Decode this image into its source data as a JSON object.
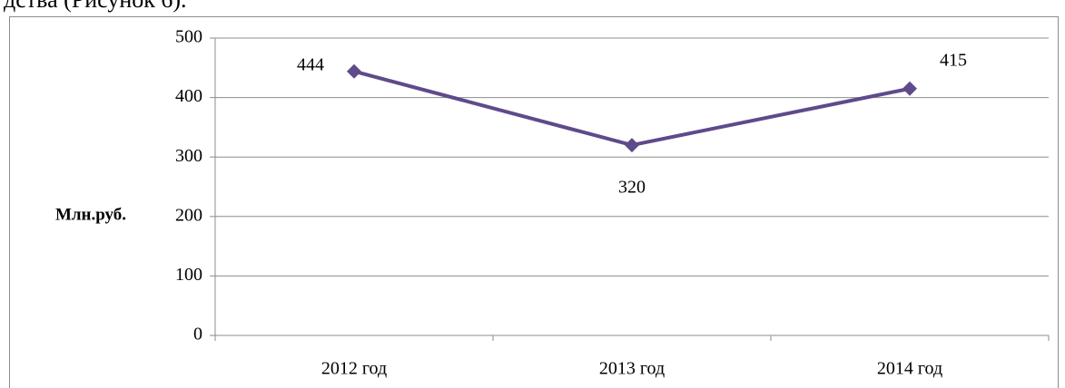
{
  "caption_fragment": "дства (Рисунок 6).",
  "chart_data": {
    "type": "line",
    "y_label": "Млн.руб.",
    "categories": [
      "2012 год",
      "2013 год",
      "2014 год"
    ],
    "series": [
      {
        "name": "Млн.руб.",
        "color": "#5f4a8b",
        "values": [
          444,
          320,
          415
        ]
      }
    ],
    "ylim": [
      0,
      500
    ],
    "yticks": [
      0,
      100,
      200,
      300,
      400,
      500
    ],
    "grid": true
  }
}
